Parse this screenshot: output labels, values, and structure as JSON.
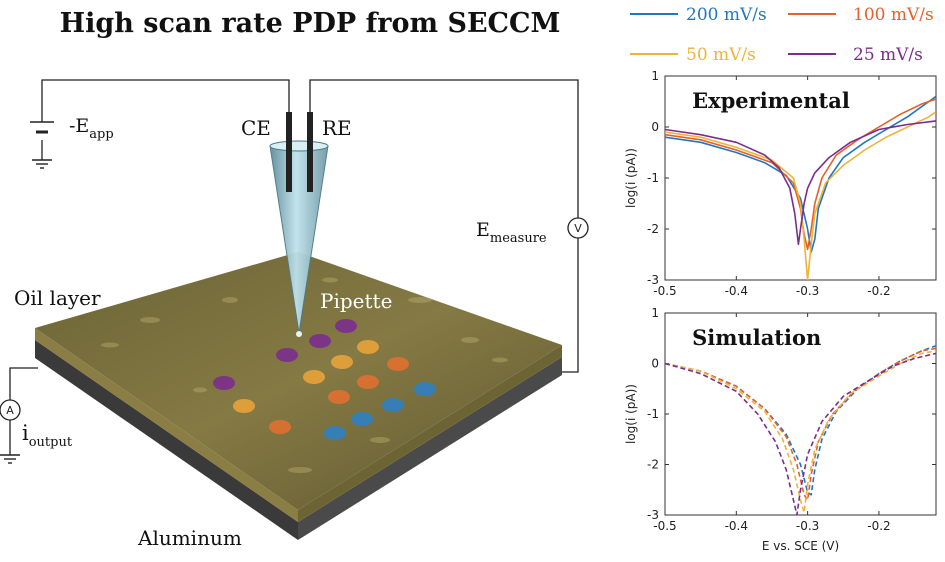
{
  "figure": {
    "title": "High scan rate PDP from SECCM"
  },
  "schematic": {
    "ce_label": "CE",
    "re_label": "RE",
    "eapp_label": "-E",
    "eapp_sub": "app",
    "emeasure_label": "E",
    "emeasure_sub": "measure",
    "voltmeter_symbol": "V",
    "ammeter_symbol": "A",
    "ioutput_label": "i",
    "ioutput_sub": "output",
    "oil_label": "Oil layer",
    "pipette_label": "Pipette",
    "aluminum_label": "Aluminum",
    "spot_colors": [
      "#7b2d8e",
      "#e8a33a",
      "#e07030",
      "#2f7fc1"
    ]
  },
  "legend": {
    "items": [
      {
        "label": "200 mV/s",
        "color": "#1f77c0"
      },
      {
        "label": "100 mV/s",
        "color": "#e3622b"
      },
      {
        "label": "50 mV/s",
        "color": "#eeb43a"
      },
      {
        "label": "25 mV/s",
        "color": "#7b2d8e"
      }
    ]
  },
  "chart_data": [
    {
      "type": "line",
      "title": "Experimental",
      "xlabel": "",
      "ylabel": "log(i (pA))",
      "xlim": [
        -0.5,
        -0.12
      ],
      "ylim": [
        -3,
        1
      ],
      "xticks": [
        -0.5,
        -0.4,
        -0.3,
        -0.2
      ],
      "yticks": [
        1,
        0,
        -1,
        -2,
        -3
      ],
      "line_style": "solid",
      "series": [
        {
          "name": "200 mV/s",
          "color": "#1f77c0",
          "x": [
            -0.5,
            -0.45,
            -0.4,
            -0.36,
            -0.33,
            -0.31,
            -0.3,
            -0.295,
            -0.29,
            -0.285,
            -0.27,
            -0.25,
            -0.22,
            -0.19,
            -0.16,
            -0.13,
            -0.12
          ],
          "y": [
            -0.2,
            -0.3,
            -0.5,
            -0.7,
            -0.95,
            -1.4,
            -2.0,
            -2.45,
            -2.2,
            -1.6,
            -1.0,
            -0.6,
            -0.3,
            -0.05,
            0.2,
            0.5,
            0.6
          ]
        },
        {
          "name": "100 mV/s",
          "color": "#e3622b",
          "x": [
            -0.5,
            -0.45,
            -0.4,
            -0.35,
            -0.32,
            -0.31,
            -0.305,
            -0.3,
            -0.295,
            -0.29,
            -0.28,
            -0.26,
            -0.23,
            -0.2,
            -0.17,
            -0.14,
            -0.12
          ],
          "y": [
            -0.15,
            -0.25,
            -0.45,
            -0.7,
            -1.1,
            -1.6,
            -2.1,
            -2.4,
            -2.0,
            -1.5,
            -1.0,
            -0.55,
            -0.25,
            0.0,
            0.25,
            0.45,
            0.55
          ]
        },
        {
          "name": "50 mV/s",
          "color": "#eeb43a",
          "x": [
            -0.5,
            -0.45,
            -0.4,
            -0.35,
            -0.32,
            -0.31,
            -0.305,
            -0.3,
            -0.295,
            -0.29,
            -0.275,
            -0.25,
            -0.22,
            -0.19,
            -0.16,
            -0.13,
            -0.12
          ],
          "y": [
            -0.1,
            -0.2,
            -0.4,
            -0.65,
            -1.0,
            -1.5,
            -2.2,
            -3.0,
            -2.3,
            -1.7,
            -1.1,
            -0.75,
            -0.45,
            -0.2,
            0.0,
            0.2,
            0.3
          ]
        },
        {
          "name": "25 mV/s",
          "color": "#7b2d8e",
          "x": [
            -0.5,
            -0.45,
            -0.4,
            -0.36,
            -0.34,
            -0.325,
            -0.318,
            -0.313,
            -0.31,
            -0.305,
            -0.3,
            -0.29,
            -0.27,
            -0.24,
            -0.2,
            -0.16,
            -0.12
          ],
          "y": [
            -0.05,
            -0.15,
            -0.3,
            -0.55,
            -0.8,
            -1.2,
            -1.7,
            -2.3,
            -2.0,
            -1.5,
            -1.2,
            -0.9,
            -0.6,
            -0.3,
            -0.05,
            0.05,
            0.12
          ]
        }
      ]
    },
    {
      "type": "line",
      "title": "Simulation",
      "xlabel": "E vs. SCE (V)",
      "ylabel": "log(i (pA))",
      "xlim": [
        -0.5,
        -0.12
      ],
      "ylim": [
        -3,
        1
      ],
      "xticks": [
        -0.5,
        -0.4,
        -0.3,
        -0.2
      ],
      "yticks": [
        1,
        0,
        -1,
        -2,
        -3
      ],
      "line_style": "dashed",
      "series": [
        {
          "name": "200 mV/s",
          "color": "#1f77c0",
          "x": [
            -0.5,
            -0.45,
            -0.4,
            -0.36,
            -0.33,
            -0.31,
            -0.3,
            -0.295,
            -0.29,
            -0.28,
            -0.26,
            -0.23,
            -0.2,
            -0.17,
            -0.14,
            -0.12
          ],
          "y": [
            0.0,
            -0.15,
            -0.45,
            -0.9,
            -1.4,
            -2.0,
            -2.55,
            -2.6,
            -2.1,
            -1.5,
            -0.95,
            -0.5,
            -0.2,
            0.05,
            0.25,
            0.35
          ]
        },
        {
          "name": "100 mV/s",
          "color": "#e3622b",
          "x": [
            -0.5,
            -0.45,
            -0.4,
            -0.36,
            -0.33,
            -0.315,
            -0.305,
            -0.3,
            -0.295,
            -0.285,
            -0.265,
            -0.235,
            -0.2,
            -0.17,
            -0.14,
            -0.12
          ],
          "y": [
            0.0,
            -0.15,
            -0.45,
            -0.9,
            -1.45,
            -2.0,
            -2.6,
            -2.7,
            -2.2,
            -1.55,
            -1.0,
            -0.55,
            -0.2,
            0.05,
            0.25,
            0.3
          ]
        },
        {
          "name": "50 mV/s",
          "color": "#eeb43a",
          "x": [
            -0.5,
            -0.45,
            -0.4,
            -0.36,
            -0.335,
            -0.32,
            -0.31,
            -0.305,
            -0.3,
            -0.29,
            -0.27,
            -0.24,
            -0.2,
            -0.17,
            -0.14,
            -0.12
          ],
          "y": [
            0.0,
            -0.15,
            -0.5,
            -0.95,
            -1.5,
            -2.1,
            -2.7,
            -2.95,
            -2.4,
            -1.7,
            -1.1,
            -0.6,
            -0.25,
            0.0,
            0.2,
            0.25
          ]
        },
        {
          "name": "25 mV/s",
          "color": "#7b2d8e",
          "x": [
            -0.5,
            -0.45,
            -0.4,
            -0.37,
            -0.345,
            -0.33,
            -0.32,
            -0.315,
            -0.31,
            -0.3,
            -0.28,
            -0.25,
            -0.21,
            -0.18,
            -0.15,
            -0.12
          ],
          "y": [
            0.0,
            -0.2,
            -0.55,
            -1.0,
            -1.55,
            -2.1,
            -2.7,
            -3.0,
            -2.5,
            -1.8,
            -1.15,
            -0.65,
            -0.3,
            -0.05,
            0.1,
            0.2
          ]
        }
      ]
    }
  ]
}
